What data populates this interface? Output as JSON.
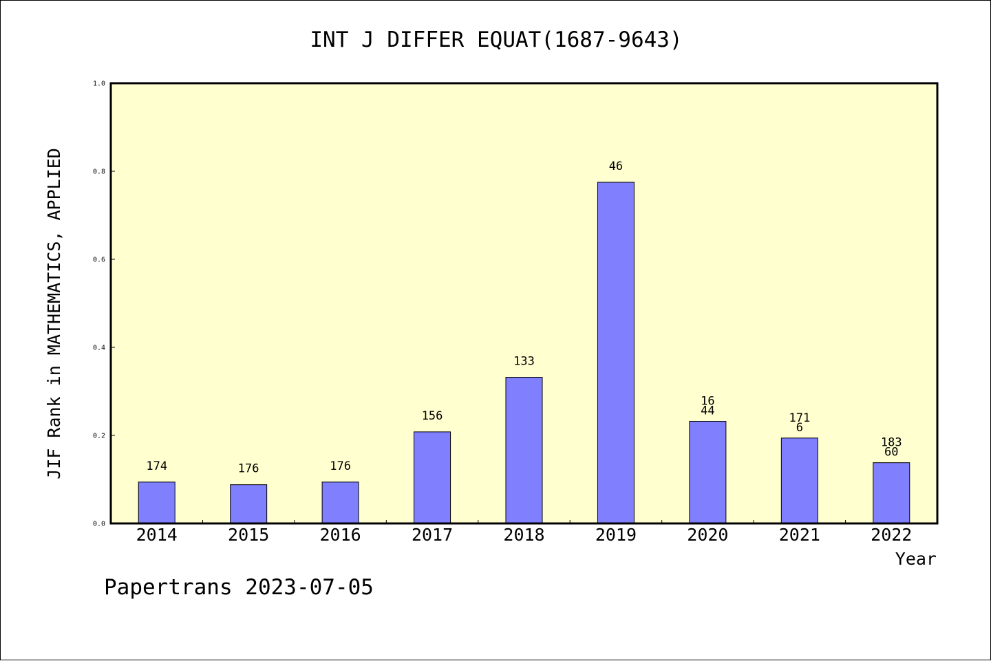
{
  "chart_data": {
    "type": "bar",
    "title": "INT J DIFFER EQUAT(1687-9643)",
    "xlabel": "Year",
    "ylabel": "JIF Rank in MATHEMATICS, APPLIED",
    "ylim": [
      0,
      1.0
    ],
    "yticks": [
      "0.0",
      "0.2",
      "0.4",
      "0.6",
      "0.8",
      "1.0"
    ],
    "categories": [
      "2014",
      "2015",
      "2016",
      "2017",
      "2018",
      "2019",
      "2020",
      "2021",
      "2022"
    ],
    "values": [
      0.094,
      0.088,
      0.094,
      0.208,
      0.332,
      0.775,
      0.232,
      0.194,
      0.138
    ],
    "labels": [
      [
        "174"
      ],
      [
        "176"
      ],
      [
        "176"
      ],
      [
        "156"
      ],
      [
        "133"
      ],
      [
        "46"
      ],
      [
        "16",
        "44"
      ],
      [
        "171",
        "6"
      ],
      [
        "183",
        "60"
      ]
    ],
    "grid": false,
    "colors": {
      "bar": "#8080ff",
      "plot_background": "#ffffd0",
      "axis": "#000000"
    }
  },
  "footer": "Papertrans 2023-07-05"
}
